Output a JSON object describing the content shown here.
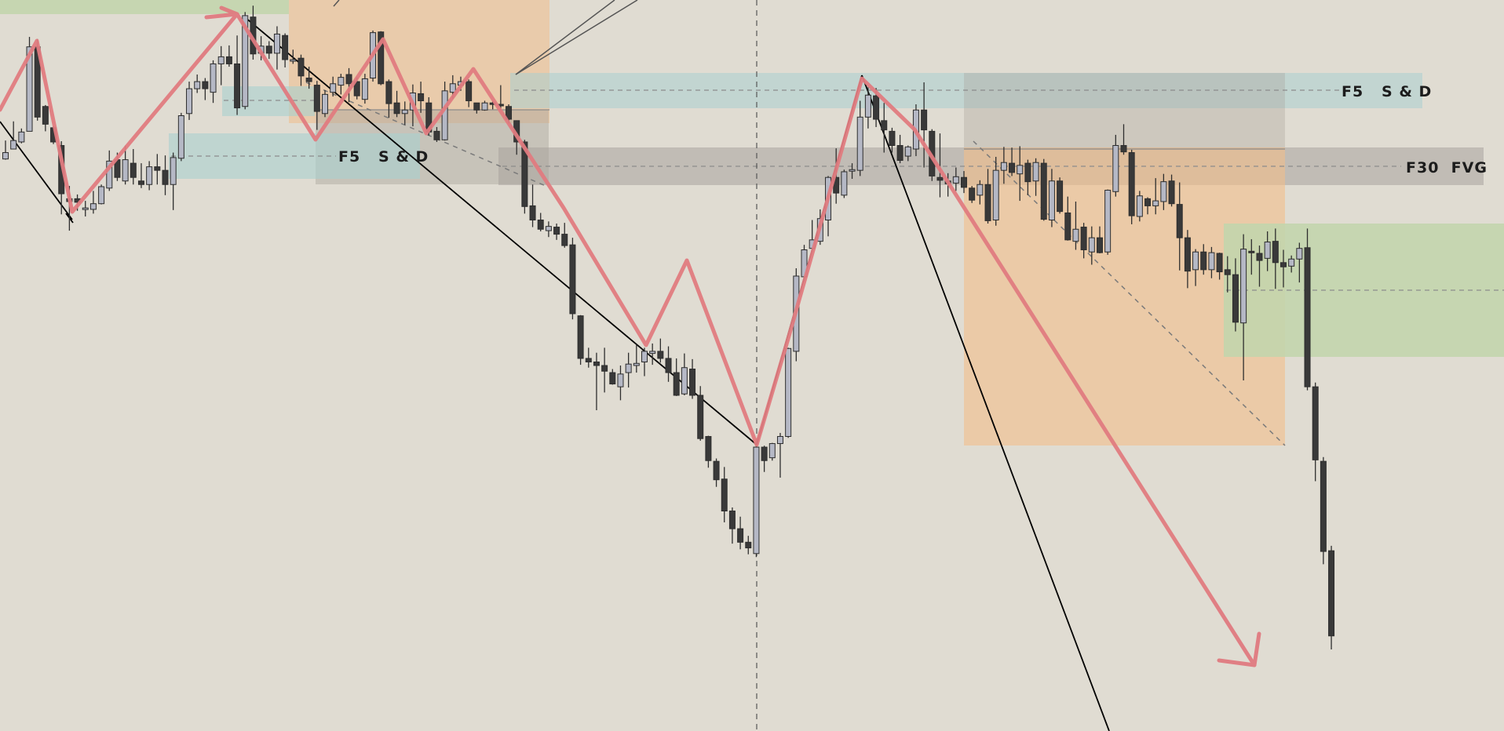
{
  "chart_data": {
    "type": "candlestick",
    "title": "",
    "xlabel": "",
    "ylabel": "",
    "grid": false,
    "legend": "none",
    "candles": [
      [
        80.6,
        83.2,
        80.5,
        81.5
      ],
      [
        82,
        85.9,
        82,
        83.2
      ],
      [
        83,
        84.9,
        82.8,
        84.4
      ],
      [
        84.5,
        97.8,
        84.5,
        96.4
      ],
      [
        96.4,
        97.5,
        86,
        86.5
      ],
      [
        88,
        88.2,
        84.5,
        85.5
      ],
      [
        85,
        85.2,
        82.7,
        83
      ],
      [
        82.5,
        83.1,
        72.8,
        75.7
      ],
      [
        75,
        76.8,
        70.5,
        74.6
      ],
      [
        75,
        75.6,
        73.3,
        74.5
      ],
      [
        73.7,
        74.7,
        72.5,
        73.7
      ],
      [
        73.5,
        76.1,
        72.9,
        74.3
      ],
      [
        74.3,
        77,
        74.2,
        76.7
      ],
      [
        76.5,
        81.8,
        76.1,
        80.3
      ],
      [
        80.5,
        81.5,
        77.5,
        78
      ],
      [
        77.5,
        82.5,
        77,
        80.5
      ],
      [
        80,
        82,
        77,
        78
      ],
      [
        77.5,
        80,
        76.5,
        77
      ],
      [
        77,
        80.3,
        76.2,
        79.5
      ],
      [
        79.5,
        81.3,
        77,
        79
      ],
      [
        79,
        81.1,
        75.5,
        77
      ],
      [
        77,
        81.5,
        73.4,
        80.8
      ],
      [
        80.7,
        87.1,
        80.3,
        86.7
      ],
      [
        87,
        91.5,
        86.1,
        90.5
      ],
      [
        90.5,
        92.5,
        89.9,
        91.5
      ],
      [
        91.5,
        92,
        88.9,
        90.5
      ],
      [
        90,
        94.5,
        88.5,
        94
      ],
      [
        94,
        96.5,
        91,
        95
      ],
      [
        95,
        96.6,
        93.6,
        94
      ],
      [
        94,
        98,
        86.8,
        87.8
      ],
      [
        88,
        101.3,
        87.6,
        100.8
      ],
      [
        100.6,
        102.2,
        94.6,
        95.4
      ],
      [
        95.5,
        97.9,
        94.5,
        96.5
      ],
      [
        96.5,
        97.2,
        94.7,
        95.5
      ],
      [
        95.5,
        99.3,
        93.2,
        98.2
      ],
      [
        98,
        98.3,
        93.5,
        94.6
      ],
      [
        94.5,
        96,
        94,
        94.6
      ],
      [
        94.8,
        95.3,
        90.9,
        92.3
      ],
      [
        92,
        93.6,
        90.5,
        91.5
      ],
      [
        91,
        91.6,
        84.7,
        87.3
      ],
      [
        87,
        90.3,
        86.5,
        89.7
      ],
      [
        90,
        92.2,
        89.4,
        91.2
      ],
      [
        91,
        92.6,
        89.7,
        92.1
      ],
      [
        92.5,
        93.4,
        88.6,
        91.2
      ],
      [
        91.5,
        92.1,
        89,
        89.5
      ],
      [
        89,
        92.6,
        88.4,
        91.9
      ],
      [
        92,
        98.7,
        91.5,
        98.4
      ],
      [
        98.5,
        98.6,
        91,
        91.2
      ],
      [
        91.5,
        91.8,
        86.4,
        88.4
      ],
      [
        88.5,
        90.2,
        86.5,
        87
      ],
      [
        87,
        88.7,
        85.4,
        87.5
      ],
      [
        87.5,
        91.1,
        85.2,
        89.9
      ],
      [
        89.8,
        91.5,
        87.1,
        88.8
      ],
      [
        88.5,
        89.3,
        83.9,
        84.4
      ],
      [
        84.5,
        85.1,
        83,
        83.3
      ],
      [
        83.3,
        91.5,
        83.2,
        90.2
      ],
      [
        90,
        92.4,
        89.1,
        91.2
      ],
      [
        91,
        92.2,
        90.2,
        91.5
      ],
      [
        91.5,
        91.8,
        87.9,
        88.8
      ],
      [
        88.5,
        88.5,
        87,
        87.5
      ],
      [
        87.5,
        88.8,
        87.4,
        88.5
      ],
      [
        88.5,
        88.8,
        87.6,
        88.3
      ],
      [
        88.3,
        91,
        87.5,
        88.1
      ],
      [
        88,
        88.3,
        85.6,
        86.2
      ],
      [
        86,
        86,
        81.2,
        83
      ],
      [
        83,
        83.3,
        72.9,
        73.9
      ],
      [
        74,
        77,
        71,
        72
      ],
      [
        72,
        73,
        70.4,
        70.7
      ],
      [
        70.5,
        71.8,
        69.6,
        71.1
      ],
      [
        71,
        71.5,
        69.2,
        70
      ],
      [
        70,
        71.6,
        68.1,
        68.4
      ],
      [
        68.5,
        69.5,
        58,
        58.8
      ],
      [
        58.5,
        58.6,
        51.6,
        52.5
      ],
      [
        52.5,
        54,
        51.2,
        52
      ],
      [
        52,
        53.3,
        45.2,
        51.5
      ],
      [
        51.5,
        54,
        47.7,
        50.7
      ],
      [
        50.5,
        51,
        48.8,
        48.9
      ],
      [
        48.5,
        51.5,
        46.6,
        50.3
      ],
      [
        50.5,
        53.3,
        48.4,
        51.7
      ],
      [
        51.5,
        54.5,
        50.5,
        51.8
      ],
      [
        52,
        54,
        50,
        53.5
      ],
      [
        53.2,
        54.6,
        51.6,
        53.5
      ],
      [
        53.5,
        55.3,
        51.9,
        52.5
      ],
      [
        52.5,
        54.2,
        49.2,
        50.5
      ],
      [
        50.5,
        52.5,
        47.2,
        47.3
      ],
      [
        47.5,
        53.2,
        47.3,
        51.2
      ],
      [
        51,
        52.4,
        46.8,
        47.3
      ],
      [
        47.3,
        48.6,
        40.9,
        41.2
      ],
      [
        41.5,
        41.6,
        37.1,
        38.1
      ],
      [
        38,
        38.4,
        34.4,
        35.4
      ],
      [
        35.5,
        37.2,
        29.4,
        31
      ],
      [
        31,
        31.5,
        26.4,
        28.5
      ],
      [
        28.5,
        30.2,
        25.6,
        26.6
      ],
      [
        26.6,
        27.5,
        24.9,
        25.8
      ],
      [
        25,
        40.3,
        24.5,
        40
      ],
      [
        40,
        40.2,
        36.5,
        38.1
      ],
      [
        38.5,
        40.6,
        38.1,
        40.5
      ],
      [
        40.5,
        42,
        35.7,
        41.5
      ],
      [
        41.5,
        54,
        41.3,
        53.9
      ],
      [
        53.5,
        65.2,
        52.1,
        64.1
      ],
      [
        64,
        68.5,
        63.4,
        67.8
      ],
      [
        68,
        72,
        67.5,
        69.2
      ],
      [
        69,
        73.5,
        68.5,
        72.2
      ],
      [
        72,
        78.2,
        69.7,
        78
      ],
      [
        78,
        82.1,
        74.3,
        75.8
      ],
      [
        75.5,
        79.1,
        75.1,
        78.8
      ],
      [
        79,
        80,
        77.8,
        79.1
      ],
      [
        79,
        88.8,
        78.2,
        86.5
      ],
      [
        86.5,
        90.7,
        84.9,
        89.6
      ],
      [
        89.5,
        90.6,
        85.1,
        86.2
      ],
      [
        86,
        88.5,
        81.5,
        84.7
      ],
      [
        84.5,
        85,
        81.5,
        82.5
      ],
      [
        82.5,
        84,
        80,
        80.4
      ],
      [
        81,
        82.5,
        80.3,
        82.3
      ],
      [
        82,
        88.3,
        81,
        87.5
      ],
      [
        87.5,
        91.4,
        79.4,
        84.7
      ],
      [
        84.5,
        84.8,
        77.5,
        78.2
      ],
      [
        78,
        84.2,
        75.2,
        77.6
      ],
      [
        77.5,
        78.6,
        75.3,
        77.1
      ],
      [
        77.2,
        79.4,
        76.1,
        78.1
      ],
      [
        78,
        78.9,
        75.8,
        76.6
      ],
      [
        76.5,
        76.8,
        74.4,
        74.8
      ],
      [
        75.5,
        77.6,
        74.2,
        77
      ],
      [
        77,
        79.2,
        71.5,
        71.9
      ],
      [
        72,
        80.9,
        71.2,
        79
      ],
      [
        79,
        82.3,
        77.1,
        80.1
      ],
      [
        80,
        82.2,
        78.2,
        78.7
      ],
      [
        78.5,
        82.4,
        74.7,
        79.7
      ],
      [
        80,
        80.5,
        75.5,
        77.4
      ],
      [
        77.5,
        80.7,
        75.4,
        80.1
      ],
      [
        80,
        80.6,
        71.9,
        72.1
      ],
      [
        72,
        79.2,
        71,
        77.5
      ],
      [
        77.5,
        78,
        72.9,
        73.2
      ],
      [
        73,
        75.3,
        69.1,
        69.2
      ],
      [
        69,
        74.6,
        67.8,
        70.7
      ],
      [
        71,
        71.6,
        66.6,
        67.8
      ],
      [
        67.5,
        71.1,
        65.7,
        69.5
      ],
      [
        69.5,
        71.1,
        67.3,
        67.4
      ],
      [
        67.5,
        76.3,
        67.1,
        76.2
      ],
      [
        76,
        84,
        75.3,
        82.5
      ],
      [
        82.5,
        85.5,
        81.2,
        81.6
      ],
      [
        81.5,
        81.9,
        71.4,
        72.6
      ],
      [
        72.5,
        76.1,
        71.8,
        75.4
      ],
      [
        75,
        75.2,
        72.8,
        74
      ],
      [
        74,
        77.9,
        72.8,
        74.7
      ],
      [
        74.6,
        78.5,
        73.4,
        77.4
      ],
      [
        77.5,
        78.4,
        73.9,
        74.3
      ],
      [
        74.2,
        77.3,
        64.9,
        69.5
      ],
      [
        69.5,
        70.6,
        62.4,
        64.8
      ],
      [
        65,
        67.9,
        62.7,
        67.5
      ],
      [
        67.5,
        68.6,
        64.3,
        65
      ],
      [
        65,
        68.2,
        63.8,
        67.4
      ],
      [
        67.3,
        67.4,
        63.6,
        64.7
      ],
      [
        65,
        66.9,
        61.8,
        64.3
      ],
      [
        64.3,
        66.6,
        56.3,
        57.6
      ],
      [
        57.5,
        70,
        49.4,
        67.9
      ],
      [
        67.6,
        69.3,
        64.3,
        67.4
      ],
      [
        67.3,
        68.4,
        62.6,
        66.3
      ],
      [
        66.6,
        70.4,
        64.8,
        68.9
      ],
      [
        69,
        70.8,
        62.3,
        66
      ],
      [
        66,
        67.8,
        62.5,
        65.4
      ],
      [
        65.5,
        67,
        64.6,
        66.5
      ],
      [
        66.5,
        68.8,
        63.2,
        68
      ],
      [
        68.1,
        70.8,
        48,
        48.5
      ],
      [
        48.5,
        49.1,
        35.2,
        38.2
      ],
      [
        38,
        38.6,
        23.5,
        25.3
      ],
      [
        25.4,
        26.1,
        11.5,
        13.4
      ]
    ],
    "y_range": [
      0,
      103
    ],
    "zones": [
      {
        "label": "F5   S & D",
        "kind": "supply-demand",
        "color": "#a9d0cf"
      },
      {
        "label": "F5   S & D",
        "kind": "supply-demand",
        "color": "#a9d0cf"
      },
      {
        "label": "F30  FVG",
        "kind": "fair-value-gap",
        "color": "#a8a39c"
      }
    ],
    "colors": {
      "bull": "#b5b8c5",
      "bear": "#393939",
      "zigzag": "#e07b80",
      "trend_line": "#000000",
      "background": "#e0dcd2",
      "supply_zone": "#f1be8b",
      "demand_zone": "#c3d5ad"
    }
  }
}
